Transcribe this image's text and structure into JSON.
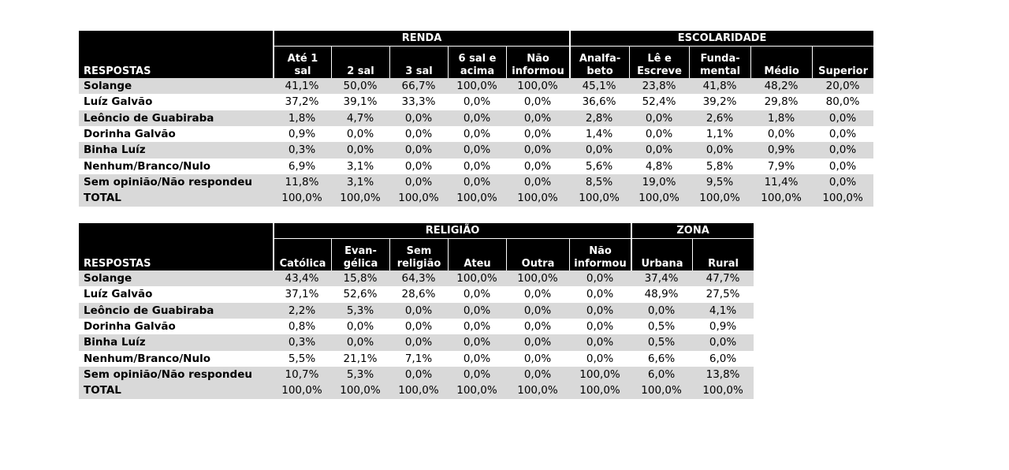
{
  "table1": {
    "respostas_label": "RESPOSTAS",
    "groups": [
      {
        "label": "RENDA",
        "span": 5
      },
      {
        "label": "ESCOLARIDADE",
        "span": 5
      }
    ],
    "columns": [
      {
        "line1": "Até 1",
        "line2": "sal"
      },
      {
        "line1": "",
        "line2": "2 sal"
      },
      {
        "line1": "",
        "line2": "3 sal"
      },
      {
        "line1": "6 sal e",
        "line2": "acima"
      },
      {
        "line1": "Não",
        "line2": "informou"
      },
      {
        "line1": "Analfa-",
        "line2": "beto"
      },
      {
        "line1": "Lê e",
        "line2": "Escreve"
      },
      {
        "line1": "Funda-",
        "line2": "mental"
      },
      {
        "line1": "",
        "line2": "Médio"
      },
      {
        "line1": "",
        "line2": "Superior"
      }
    ],
    "rows": [
      {
        "label": "Solange",
        "values": [
          "41,1%",
          "50,0%",
          "66,7%",
          "100,0%",
          "100,0%",
          "45,1%",
          "23,8%",
          "41,8%",
          "48,2%",
          "20,0%"
        ]
      },
      {
        "label": "Luíz Galvão",
        "values": [
          "37,2%",
          "39,1%",
          "33,3%",
          "0,0%",
          "0,0%",
          "36,6%",
          "52,4%",
          "39,2%",
          "29,8%",
          "80,0%"
        ]
      },
      {
        "label": "Leôncio de Guabiraba",
        "values": [
          "1,8%",
          "4,7%",
          "0,0%",
          "0,0%",
          "0,0%",
          "2,8%",
          "0,0%",
          "2,6%",
          "1,8%",
          "0,0%"
        ]
      },
      {
        "label": "Dorinha Galvão",
        "values": [
          "0,9%",
          "0,0%",
          "0,0%",
          "0,0%",
          "0,0%",
          "1,4%",
          "0,0%",
          "1,1%",
          "0,0%",
          "0,0%"
        ]
      },
      {
        "label": "Binha Luíz",
        "values": [
          "0,3%",
          "0,0%",
          "0,0%",
          "0,0%",
          "0,0%",
          "0,0%",
          "0,0%",
          "0,0%",
          "0,9%",
          "0,0%"
        ]
      },
      {
        "label": "Nenhum/Branco/Nulo",
        "values": [
          "6,9%",
          "3,1%",
          "0,0%",
          "0,0%",
          "0,0%",
          "5,6%",
          "4,8%",
          "5,8%",
          "7,9%",
          "0,0%"
        ]
      },
      {
        "label": "Sem opinião/Não respondeu",
        "values": [
          "11,8%",
          "3,1%",
          "0,0%",
          "0,0%",
          "0,0%",
          "8,5%",
          "19,0%",
          "9,5%",
          "11,4%",
          "0,0%"
        ]
      },
      {
        "label": "TOTAL",
        "values": [
          "100,0%",
          "100,0%",
          "100,0%",
          "100,0%",
          "100,0%",
          "100,0%",
          "100,0%",
          "100,0%",
          "100,0%",
          "100,0%"
        ]
      }
    ]
  },
  "table2": {
    "respostas_label": "RESPOSTAS",
    "groups": [
      {
        "label": "RELIGIÃO",
        "span": 6
      },
      {
        "label": "ZONA",
        "span": 2
      }
    ],
    "columns": [
      {
        "line1": "",
        "line2": "Católica"
      },
      {
        "line1": "Evan-",
        "line2": "gélica"
      },
      {
        "line1": "Sem",
        "line2": "religião"
      },
      {
        "line1": "",
        "line2": "Ateu"
      },
      {
        "line1": "",
        "line2": "Outra"
      },
      {
        "line1": "Não",
        "line2": "informou"
      },
      {
        "line1": "",
        "line2": "Urbana"
      },
      {
        "line1": "",
        "line2": "Rural"
      }
    ],
    "rows": [
      {
        "label": "Solange",
        "values": [
          "43,4%",
          "15,8%",
          "64,3%",
          "100,0%",
          "100,0%",
          "0,0%",
          "37,4%",
          "47,7%"
        ]
      },
      {
        "label": "Luíz Galvão",
        "values": [
          "37,1%",
          "52,6%",
          "28,6%",
          "0,0%",
          "0,0%",
          "0,0%",
          "48,9%",
          "27,5%"
        ]
      },
      {
        "label": "Leôncio de Guabiraba",
        "values": [
          "2,2%",
          "5,3%",
          "0,0%",
          "0,0%",
          "0,0%",
          "0,0%",
          "0,0%",
          "4,1%"
        ]
      },
      {
        "label": "Dorinha Galvão",
        "values": [
          "0,8%",
          "0,0%",
          "0,0%",
          "0,0%",
          "0,0%",
          "0,0%",
          "0,5%",
          "0,9%"
        ]
      },
      {
        "label": "Binha Luíz",
        "values": [
          "0,3%",
          "0,0%",
          "0,0%",
          "0,0%",
          "0,0%",
          "0,0%",
          "0,5%",
          "0,0%"
        ]
      },
      {
        "label": "Nenhum/Branco/Nulo",
        "values": [
          "5,5%",
          "21,1%",
          "7,1%",
          "0,0%",
          "0,0%",
          "0,0%",
          "6,6%",
          "6,0%"
        ]
      },
      {
        "label": "Sem opinião/Não respondeu",
        "values": [
          "10,7%",
          "5,3%",
          "0,0%",
          "0,0%",
          "0,0%",
          "100,0%",
          "6,0%",
          "13,8%"
        ]
      },
      {
        "label": "TOTAL",
        "values": [
          "100,0%",
          "100,0%",
          "100,0%",
          "100,0%",
          "100,0%",
          "100,0%",
          "100,0%",
          "100,0%"
        ]
      }
    ]
  },
  "colors": {
    "header_bg": "#000000",
    "header_text": "#ffffff",
    "row_shade": "#d9d9d9",
    "row_plain": "#ffffff"
  }
}
